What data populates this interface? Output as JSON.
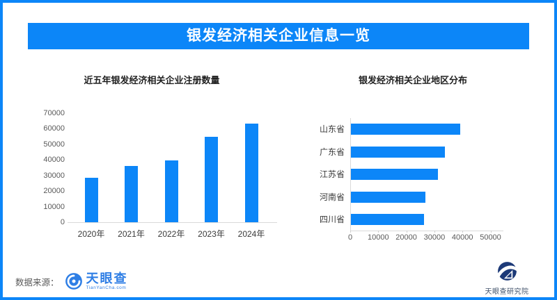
{
  "header": {
    "title": "银发经济相关企业信息一览"
  },
  "chart_data": [
    {
      "type": "bar",
      "orientation": "vertical",
      "title": "近五年银发经济相关企业注册数量",
      "categories": [
        "2020年",
        "2021年",
        "2022年",
        "2023年",
        "2024年"
      ],
      "values": [
        28500,
        36000,
        39500,
        55000,
        63500
      ],
      "xlabel": "",
      "ylabel": "",
      "ylim": [
        0,
        70000
      ],
      "yticks": [
        0,
        10000,
        20000,
        30000,
        40000,
        50000,
        60000,
        70000
      ],
      "grid": false,
      "legend": false,
      "bar_color": "#0c86f8"
    },
    {
      "type": "bar",
      "orientation": "horizontal",
      "title": "银发经济相关企业地区分布",
      "categories": [
        "山东省",
        "广东省",
        "江苏省",
        "河南省",
        "四川省"
      ],
      "values": [
        39000,
        33500,
        31000,
        26500,
        26000
      ],
      "xlabel": "",
      "ylabel": "",
      "xlim": [
        0,
        54000
      ],
      "xticks": [
        0,
        10000,
        20000,
        30000,
        40000,
        50000
      ],
      "grid": false,
      "legend": false,
      "bar_color": "#0c86f8"
    }
  ],
  "footer": {
    "source_label": "数据来源：",
    "source_brand": "天眼查",
    "source_brand_sub": "TianYanCha.com",
    "institute": "天眼查研究院"
  },
  "colors": {
    "accent": "#0c86f8",
    "brand_blue": "#2e7ee5",
    "navy": "#1d3a78",
    "axis_line": "#d9d9d9",
    "tick_text": "#595959",
    "label_text": "#3a3a3a"
  }
}
